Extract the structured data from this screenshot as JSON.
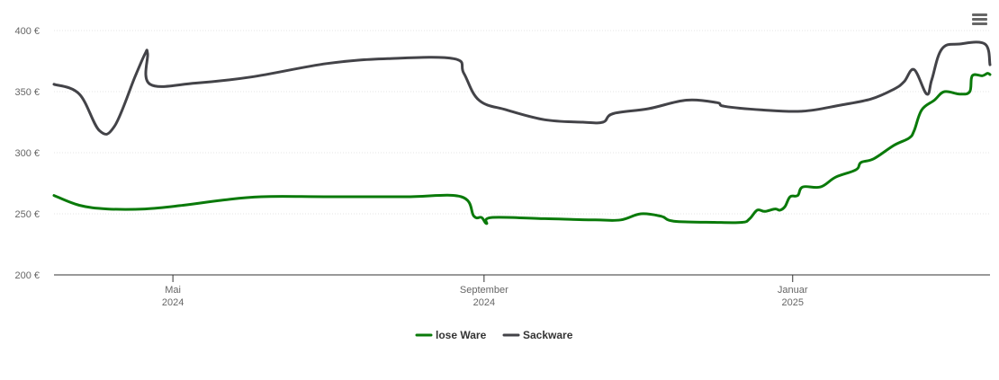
{
  "menu": {
    "icon": "hamburger-menu-icon"
  },
  "chart_data": {
    "type": "line",
    "title": "",
    "xlabel": "",
    "ylabel": "",
    "ylim": [
      200,
      400
    ],
    "xlim": [
      "2024-03-15",
      "2025-03-20"
    ],
    "y_ticks": [
      {
        "value": 200,
        "label": "200 €"
      },
      {
        "value": 250,
        "label": "250 €"
      },
      {
        "value": 300,
        "label": "300 €"
      },
      {
        "value": 350,
        "label": "350 €"
      },
      {
        "value": 400,
        "label": "400 €"
      }
    ],
    "x_ticks": [
      {
        "date": "2024-05-01",
        "label_month": "Mai",
        "label_year": "2024"
      },
      {
        "date": "2024-09-01",
        "label_month": "September",
        "label_year": "2024"
      },
      {
        "date": "2025-01-01",
        "label_month": "Januar",
        "label_year": "2025"
      }
    ],
    "grid": true,
    "legend_position": "bottom-center",
    "series": [
      {
        "name": "lose Ware",
        "color": "#0a7a0a",
        "points": [
          [
            "2024-03-15",
            265
          ],
          [
            "2024-03-25",
            257
          ],
          [
            "2024-04-05",
            254
          ],
          [
            "2024-04-20",
            254
          ],
          [
            "2024-05-05",
            257
          ],
          [
            "2024-05-20",
            261
          ],
          [
            "2024-06-05",
            264
          ],
          [
            "2024-07-01",
            264
          ],
          [
            "2024-08-01",
            264
          ],
          [
            "2024-08-23",
            264
          ],
          [
            "2024-08-28",
            248
          ],
          [
            "2024-08-31",
            247
          ],
          [
            "2024-09-02",
            242
          ],
          [
            "2024-09-04",
            247
          ],
          [
            "2024-09-25",
            246
          ],
          [
            "2024-10-15",
            245
          ],
          [
            "2024-10-25",
            245
          ],
          [
            "2024-11-02",
            250
          ],
          [
            "2024-11-10",
            248
          ],
          [
            "2024-11-15",
            244
          ],
          [
            "2024-12-01",
            243
          ],
          [
            "2024-12-12",
            243
          ],
          [
            "2024-12-15",
            246
          ],
          [
            "2024-12-18",
            253
          ],
          [
            "2024-12-21",
            252
          ],
          [
            "2024-12-25",
            254
          ],
          [
            "2024-12-27",
            253
          ],
          [
            "2024-12-29",
            256
          ],
          [
            "2024-12-31",
            264
          ],
          [
            "2025-01-03",
            265
          ],
          [
            "2025-01-05",
            272
          ],
          [
            "2025-01-12",
            272
          ],
          [
            "2025-01-18",
            280
          ],
          [
            "2025-01-26",
            286
          ],
          [
            "2025-01-28",
            292
          ],
          [
            "2025-02-02",
            295
          ],
          [
            "2025-02-10",
            306
          ],
          [
            "2025-02-16",
            312
          ],
          [
            "2025-02-18",
            318
          ],
          [
            "2025-02-21",
            335
          ],
          [
            "2025-02-26",
            343
          ],
          [
            "2025-03-02",
            350
          ],
          [
            "2025-03-08",
            348
          ],
          [
            "2025-03-12",
            350
          ],
          [
            "2025-03-13",
            363
          ],
          [
            "2025-03-17",
            363
          ],
          [
            "2025-03-19",
            365
          ],
          [
            "2025-03-20",
            364
          ]
        ]
      },
      {
        "name": "Sackware",
        "color": "#434348",
        "points": [
          [
            "2024-03-15",
            356
          ],
          [
            "2024-03-25",
            348
          ],
          [
            "2024-04-02",
            318
          ],
          [
            "2024-04-08",
            322
          ],
          [
            "2024-04-16",
            362
          ],
          [
            "2024-04-20",
            381
          ],
          [
            "2024-04-21",
            381
          ],
          [
            "2024-04-22",
            356
          ],
          [
            "2024-05-10",
            357
          ],
          [
            "2024-06-01",
            362
          ],
          [
            "2024-07-01",
            373
          ],
          [
            "2024-07-25",
            377
          ],
          [
            "2024-08-20",
            377
          ],
          [
            "2024-08-24",
            365
          ],
          [
            "2024-08-30",
            343
          ],
          [
            "2024-09-10",
            335
          ],
          [
            "2024-09-25",
            327
          ],
          [
            "2024-10-10",
            325
          ],
          [
            "2024-10-18",
            325
          ],
          [
            "2024-10-22",
            332
          ],
          [
            "2024-11-05",
            336
          ],
          [
            "2024-11-20",
            343
          ],
          [
            "2024-12-02",
            341
          ],
          [
            "2024-12-05",
            338
          ],
          [
            "2024-12-20",
            335
          ],
          [
            "2025-01-05",
            334
          ],
          [
            "2025-01-20",
            339
          ],
          [
            "2025-02-01",
            344
          ],
          [
            "2025-02-10",
            352
          ],
          [
            "2025-02-14",
            358
          ],
          [
            "2025-02-18",
            368
          ],
          [
            "2025-02-23",
            348
          ],
          [
            "2025-02-25",
            360
          ],
          [
            "2025-03-01",
            385
          ],
          [
            "2025-03-08",
            389
          ],
          [
            "2025-03-18",
            389
          ],
          [
            "2025-03-20",
            372
          ]
        ]
      }
    ]
  }
}
